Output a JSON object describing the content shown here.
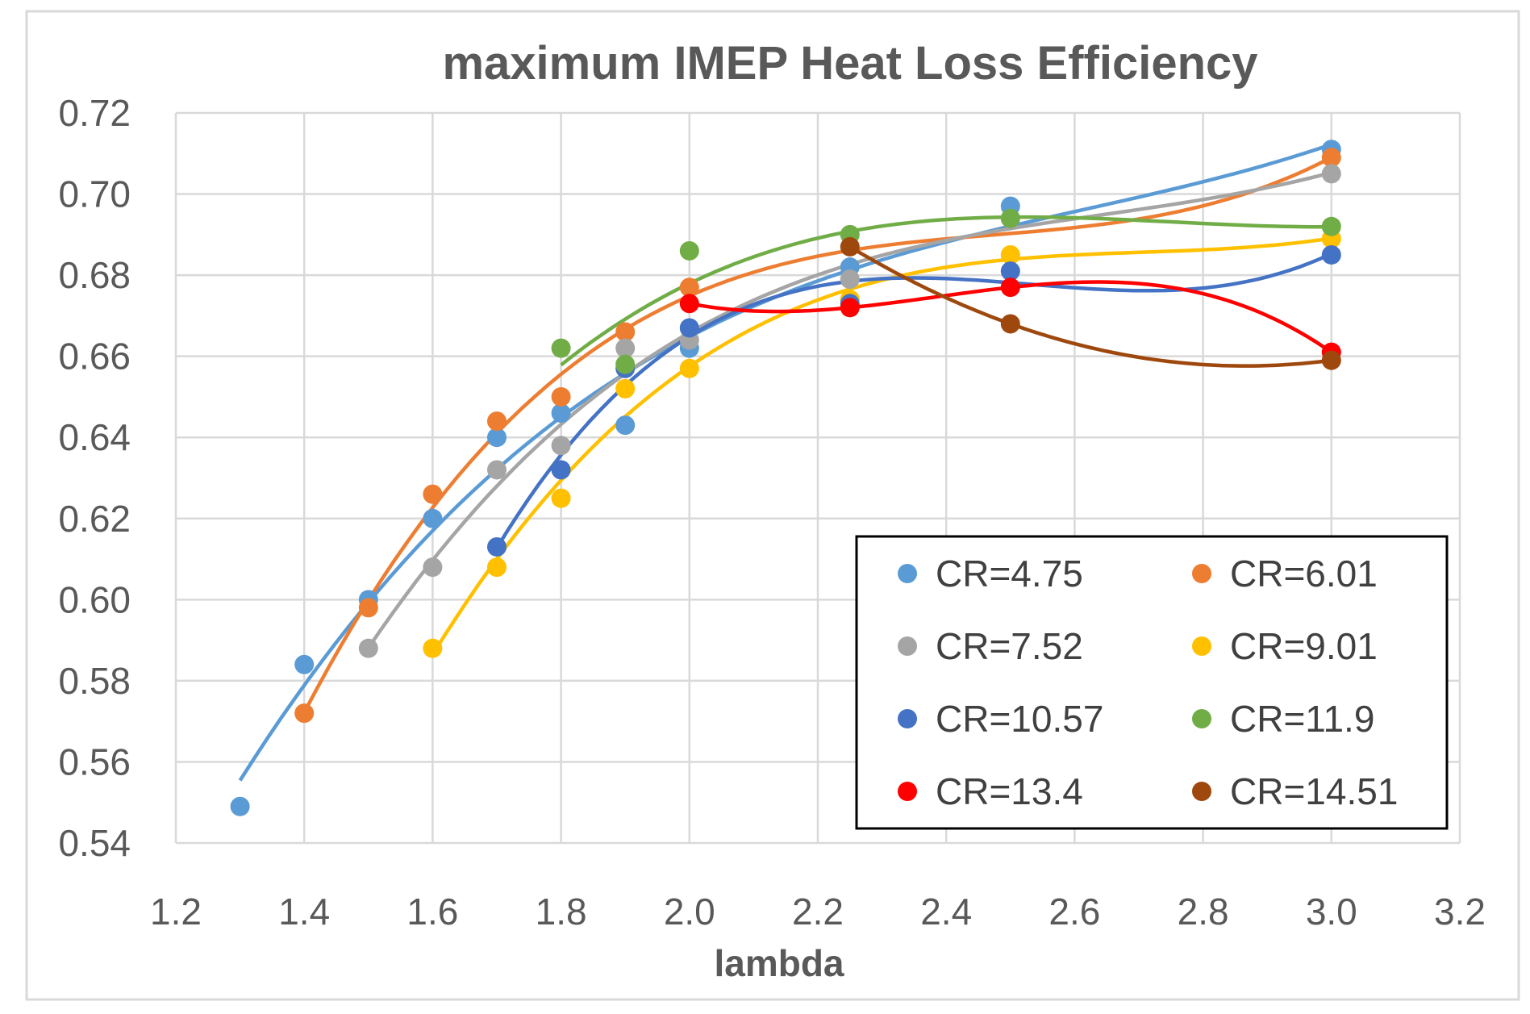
{
  "chart_data": {
    "type": "scatter",
    "title": "maximum IMEP Heat Loss Efficiency",
    "xlabel": "lambda",
    "ylabel": "",
    "xlim": [
      1.2,
      3.2
    ],
    "ylim": [
      0.54,
      0.72
    ],
    "x_ticks": [
      "1.2",
      "1.4",
      "1.6",
      "1.8",
      "2.0",
      "2.2",
      "2.4",
      "2.6",
      "2.8",
      "3.0",
      "3.2"
    ],
    "y_ticks": [
      "0.54",
      "0.56",
      "0.58",
      "0.60",
      "0.62",
      "0.64",
      "0.66",
      "0.68",
      "0.70",
      "0.72"
    ],
    "grid": true,
    "legend_position": "bottom-right",
    "trendline": "polynomial",
    "series": [
      {
        "name": "CR=4.75",
        "color": "#5B9BD5",
        "x": [
          1.3,
          1.4,
          1.5,
          1.6,
          1.7,
          1.8,
          1.9,
          2.0,
          2.25,
          2.5,
          3.0
        ],
        "y": [
          0.549,
          0.584,
          0.6,
          0.62,
          0.64,
          0.646,
          0.643,
          0.662,
          0.682,
          0.697,
          0.711
        ]
      },
      {
        "name": "CR=6.01",
        "color": "#ED7D31",
        "x": [
          1.4,
          1.5,
          1.6,
          1.7,
          1.8,
          1.9,
          2.0,
          3.0
        ],
        "y": [
          0.572,
          0.598,
          0.626,
          0.644,
          0.65,
          0.666,
          0.677,
          0.709
        ]
      },
      {
        "name": "CR=7.52",
        "color": "#A5A5A5",
        "x": [
          1.5,
          1.6,
          1.7,
          1.8,
          1.9,
          2.0,
          2.25,
          2.5,
          3.0
        ],
        "y": [
          0.588,
          0.608,
          0.632,
          0.638,
          0.662,
          0.664,
          0.679,
          0.694,
          0.705
        ]
      },
      {
        "name": "CR=9.01",
        "color": "#FFC000",
        "x": [
          1.6,
          1.7,
          1.8,
          1.9,
          2.0,
          2.25,
          2.5,
          3.0
        ],
        "y": [
          0.588,
          0.608,
          0.625,
          0.652,
          0.657,
          0.674,
          0.685,
          0.689
        ]
      },
      {
        "name": "CR=10.57",
        "color": "#4472C4",
        "x": [
          1.7,
          1.8,
          1.9,
          2.0,
          2.25,
          2.5,
          3.0
        ],
        "y": [
          0.613,
          0.632,
          0.657,
          0.667,
          0.673,
          0.681,
          0.685
        ]
      },
      {
        "name": "CR=11.9",
        "color": "#70AD47",
        "x": [
          1.8,
          1.9,
          2.0,
          2.25,
          2.5,
          3.0
        ],
        "y": [
          0.662,
          0.658,
          0.686,
          0.69,
          0.694,
          0.692
        ]
      },
      {
        "name": "CR=13.4",
        "color": "#FF0000",
        "x": [
          2.0,
          2.25,
          2.5,
          3.0
        ],
        "y": [
          0.673,
          0.672,
          0.677,
          0.661
        ]
      },
      {
        "name": "CR=14.51",
        "color": "#9E480E",
        "x": [
          2.25,
          2.5,
          3.0
        ],
        "y": [
          0.687,
          0.668,
          0.659
        ]
      }
    ]
  }
}
